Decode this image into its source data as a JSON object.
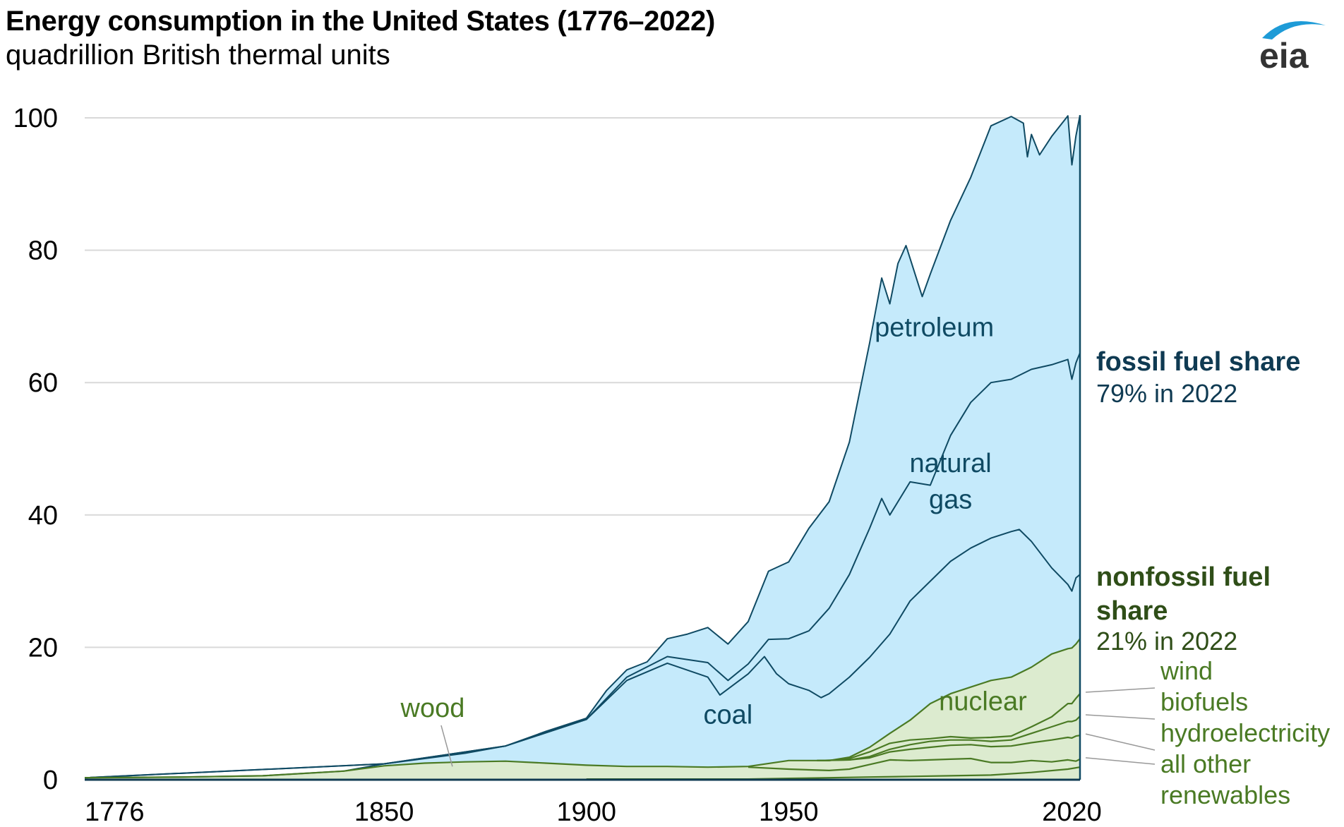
{
  "header": {
    "title": "Energy consumption in the United States (1776–2022)",
    "subtitle": "quadrillion British thermal units"
  },
  "logo": {
    "text": "eia",
    "icon": "eia-logo-icon",
    "accent": "#1e9bd7",
    "text_color": "#333333"
  },
  "colors": {
    "fossil_fill": "#c5eafb",
    "fossil_line": "#0f4a63",
    "nonfossil_fill": "#dcebcf",
    "nonfossil_line": "#4a7a24",
    "grid": "#d9d9d9"
  },
  "chart_data": {
    "type": "area",
    "title": "Energy consumption in the United States (1776–2022)",
    "ylabel": "quadrillion British thermal units",
    "xlim": [
      1776,
      2022
    ],
    "ylim": [
      0,
      100
    ],
    "yticks": [
      0,
      20,
      40,
      60,
      80,
      100
    ],
    "xticks": [
      1776,
      1850,
      1900,
      1950,
      2020
    ],
    "grid": true,
    "stacking": "cumulative top edge of each layer, bottom to top: wood/nonfossil, coal, natural gas, petroleum",
    "series": [
      {
        "name": "petroleum",
        "group": "fossil",
        "x": [
          1776,
          1800,
          1820,
          1840,
          1850,
          1860,
          1870,
          1880,
          1890,
          1900,
          1905,
          1910,
          1915,
          1920,
          1925,
          1930,
          1935,
          1940,
          1945,
          1950,
          1955,
          1960,
          1965,
          1970,
          1973,
          1975,
          1977,
          1979,
          1983,
          1985,
          1990,
          1995,
          2000,
          2005,
          2008,
          2009,
          2010,
          2012,
          2015,
          2019,
          2020,
          2021,
          2022
        ],
        "y": [
          0.3,
          0.4,
          0.6,
          1.3,
          2.4,
          3.2,
          4.0,
          5.1,
          7.3,
          9.3,
          13.5,
          16.6,
          17.8,
          21.3,
          22.0,
          23.0,
          20.5,
          23.9,
          31.5,
          32.9,
          38.0,
          42.0,
          51.0,
          66.0,
          75.8,
          71.9,
          78.0,
          80.7,
          73.0,
          76.4,
          84.5,
          91.0,
          98.8,
          100.2,
          99.2,
          94.1,
          97.5,
          94.4,
          97.2,
          100.3,
          92.9,
          97.3,
          100.4
        ]
      },
      {
        "name": "natural gas",
        "group": "fossil",
        "x": [
          1776,
          1850,
          1880,
          1900,
          1910,
          1920,
          1930,
          1935,
          1940,
          1945,
          1950,
          1955,
          1960,
          1965,
          1970,
          1973,
          1975,
          1980,
          1985,
          1990,
          1995,
          2000,
          2005,
          2010,
          2015,
          2019,
          2020,
          2021,
          2022
        ],
        "y": [
          0.3,
          2.4,
          5.1,
          9.1,
          15.5,
          18.6,
          17.7,
          15.0,
          17.5,
          21.2,
          21.3,
          22.5,
          25.9,
          31.0,
          38.0,
          42.5,
          40.0,
          45.0,
          44.5,
          52.0,
          57.0,
          60.0,
          60.5,
          62.0,
          62.7,
          63.5,
          60.5,
          63.0,
          64.5
        ]
      },
      {
        "name": "coal",
        "group": "fossil",
        "x": [
          1776,
          1850,
          1880,
          1900,
          1910,
          1920,
          1930,
          1933,
          1940,
          1944,
          1947,
          1950,
          1955,
          1958,
          1960,
          1965,
          1970,
          1975,
          1980,
          1985,
          1990,
          1995,
          2000,
          2005,
          2007,
          2010,
          2015,
          2019,
          2020,
          2021,
          2022
        ],
        "y": [
          0.3,
          2.4,
          5.1,
          9.1,
          15.0,
          17.6,
          15.5,
          12.8,
          16.0,
          18.6,
          16.0,
          14.5,
          13.5,
          12.4,
          13.0,
          15.5,
          18.5,
          22.0,
          27.0,
          30.0,
          33.0,
          35.0,
          36.5,
          37.5,
          37.8,
          36.0,
          32.0,
          29.5,
          28.5,
          30.5,
          31.0
        ]
      },
      {
        "name": "wood",
        "group": "nonfossil",
        "x": [
          1776,
          1800,
          1820,
          1840,
          1850,
          1860,
          1870,
          1880,
          1890,
          1900,
          1910,
          1920,
          1930,
          1940,
          1950,
          1960,
          1965,
          1970,
          1975,
          1980,
          1985,
          1990,
          1995,
          2000,
          2005,
          2010,
          2015,
          2019,
          2020,
          2021,
          2022
        ],
        "y": [
          0.3,
          0.4,
          0.6,
          1.3,
          2.1,
          2.5,
          2.7,
          2.8,
          2.5,
          2.2,
          2.0,
          2.0,
          1.9,
          2.0,
          2.9,
          2.9,
          3.4,
          4.9,
          7.0,
          9.0,
          11.5,
          13.0,
          14.0,
          15.0,
          15.5,
          17.0,
          19.0,
          19.8,
          19.9,
          20.5,
          21.3
        ]
      },
      {
        "name": "nuclear",
        "group": "nonfossil",
        "x": [
          1957,
          1960,
          1965,
          1970,
          1975,
          1980,
          1985,
          1990,
          1995,
          2000,
          2005,
          2010,
          2015,
          2019,
          2020,
          2021,
          2022
        ],
        "y": [
          2.9,
          2.9,
          3.2,
          4.2,
          5.5,
          6.0,
          6.2,
          6.5,
          6.3,
          6.4,
          6.6,
          8.0,
          9.5,
          11.5,
          11.5,
          12.3,
          13.0
        ]
      },
      {
        "name": "wind",
        "group": "nonfossil",
        "x": [
          1957,
          1965,
          1970,
          1975,
          1980,
          1985,
          1990,
          1995,
          2000,
          2005,
          2010,
          2015,
          2019,
          2020,
          2021,
          2022
        ],
        "y": [
          2.9,
          3.0,
          3.5,
          4.6,
          5.3,
          5.8,
          6.0,
          6.0,
          5.8,
          6.0,
          7.0,
          8.0,
          8.8,
          8.8,
          9.0,
          9.6
        ]
      },
      {
        "name": "biofuels",
        "group": "nonfossil",
        "x": [
          1957,
          1965,
          1970,
          1975,
          1980,
          1985,
          1990,
          1995,
          2000,
          2005,
          2010,
          2015,
          2019,
          2020,
          2021,
          2022
        ],
        "y": [
          2.9,
          3.0,
          3.3,
          4.2,
          4.6,
          4.9,
          5.2,
          5.3,
          5.0,
          5.1,
          5.6,
          6.0,
          6.4,
          6.3,
          6.6,
          6.7
        ]
      },
      {
        "name": "hydroelectricity",
        "group": "nonfossil",
        "x": [
          1940,
          1950,
          1960,
          1965,
          1970,
          1975,
          1980,
          1985,
          1990,
          1995,
          2000,
          2005,
          2010,
          2015,
          2019,
          2020,
          2021,
          2022
        ],
        "y": [
          1.9,
          1.6,
          1.4,
          1.6,
          2.3,
          3.0,
          2.9,
          3.0,
          3.1,
          3.2,
          2.6,
          2.6,
          2.9,
          2.7,
          3.0,
          2.9,
          2.8,
          3.1
        ]
      },
      {
        "name": "all other renewables",
        "group": "nonfossil",
        "x": [
          1900,
          1920,
          1940,
          1950,
          1960,
          1970,
          1980,
          1990,
          2000,
          2010,
          2019,
          2022
        ],
        "y": [
          0.1,
          0.1,
          0.1,
          0.2,
          0.3,
          0.4,
          0.5,
          0.6,
          0.7,
          1.1,
          1.6,
          1.9
        ]
      }
    ],
    "area_labels": [
      {
        "text": "petroleum",
        "x": 1986,
        "y": 67,
        "color": "blue"
      },
      {
        "text": "natural",
        "x": 1990,
        "y": 46.5,
        "color": "blue"
      },
      {
        "text": "gas",
        "x": 1990,
        "y": 41,
        "color": "blue"
      },
      {
        "text": "coal",
        "x": 1935,
        "y": 8.5,
        "color": "blue"
      },
      {
        "text": "wood",
        "x": 1862,
        "y": 9.5,
        "color": "green"
      },
      {
        "text": "nuclear",
        "x": 1998,
        "y": 10.5,
        "color": "green"
      }
    ],
    "side_annotations": {
      "fossil_title": "fossil fuel share",
      "fossil_value": "79% in 2022",
      "nonfossil_title_1": "nonfossil fuel",
      "nonfossil_title_2": "share",
      "nonfossil_value": "21% in 2022"
    },
    "legend": [
      "wind",
      "biofuels",
      "hydroelectricity",
      "all other",
      "renewables"
    ]
  }
}
